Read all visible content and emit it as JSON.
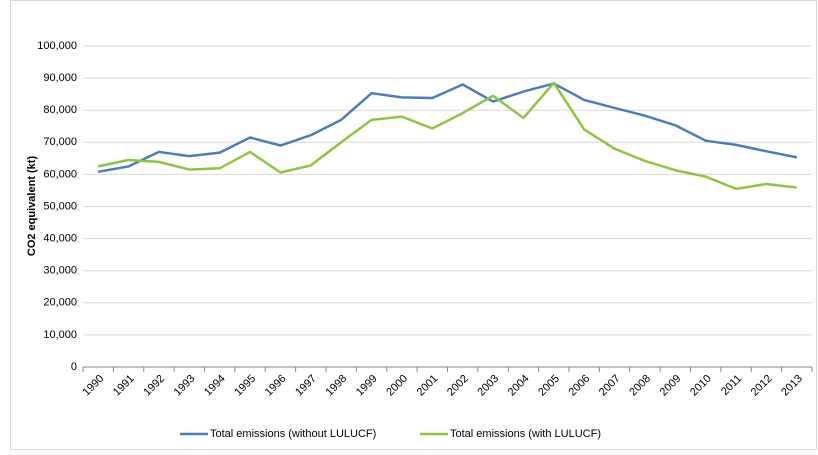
{
  "chart_data": {
    "type": "line",
    "y_label": "CO2 equivalent (kt)",
    "categories": [
      "1990",
      "1991",
      "1992",
      "1993",
      "1994",
      "1995",
      "1996",
      "1997",
      "1998",
      "1999",
      "2000",
      "2001",
      "2002",
      "2003",
      "2004",
      "2005",
      "2006",
      "2007",
      "2008",
      "2009",
      "2010",
      "2011",
      "2012",
      "2013"
    ],
    "series": [
      {
        "name": "Total emissions (without LULUCF)",
        "color": "#4a7ebb",
        "values": [
          60800,
          62500,
          67000,
          65700,
          66800,
          71500,
          69000,
          72200,
          77000,
          85300,
          84000,
          83800,
          88000,
          82700,
          85800,
          88300,
          83200,
          80700,
          78300,
          75300,
          70500,
          69200,
          67200,
          65300
        ]
      },
      {
        "name": "Total emissions (with LULUCF)",
        "color": "#8cc63f",
        "values": [
          62500,
          64500,
          63900,
          61500,
          61900,
          67000,
          60600,
          62800,
          70000,
          77000,
          78000,
          74300,
          79100,
          84500,
          77600,
          88500,
          74000,
          68000,
          64200,
          61300,
          59300,
          55500,
          57000,
          55900
        ]
      }
    ],
    "ylim": [
      0,
      100000
    ],
    "yticks": [
      0,
      {
        "value": 10000,
        "label": "10,000"
      },
      {
        "value": 20000,
        "label": "20,000"
      },
      {
        "value": 30000,
        "label": "30,000"
      },
      {
        "value": 40000,
        "label": "40,000"
      },
      {
        "value": 50000,
        "label": "50,000"
      },
      {
        "value": 60000,
        "label": "60,000"
      },
      {
        "value": 70000,
        "label": "70,000"
      },
      {
        "value": 80000,
        "label": "80,000"
      },
      {
        "value": 90000,
        "label": "90,000"
      },
      {
        "value": 100000,
        "label": "100,000"
      }
    ],
    "grid": true,
    "legend": "bottom"
  }
}
